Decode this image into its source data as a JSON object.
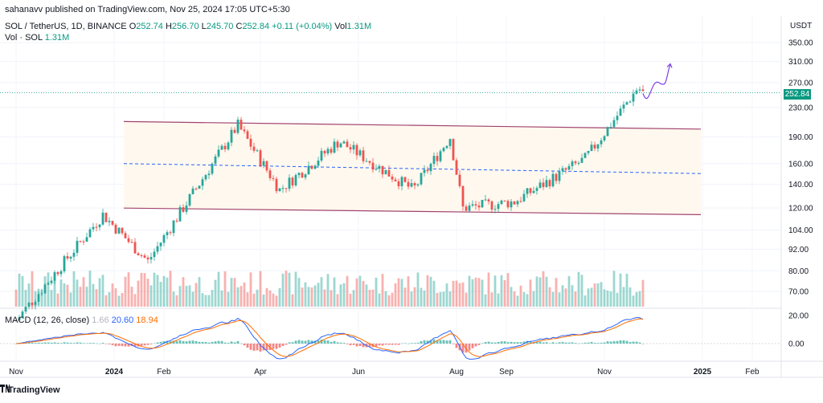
{
  "header": {
    "publisher": "sahanavv published on TradingView.com, Nov 25, 2024 17:05 UTC+5:30",
    "symbol": "SOL / TetherUS, 1D, BINANCE",
    "o_label": "O",
    "o_value": "252.74",
    "h_label": "H",
    "h_value": "256.70",
    "l_label": "L",
    "l_value": "245.70",
    "c_label": "C",
    "c_value": "252.84",
    "change": "+0.11 (+0.04%)",
    "vol_label": "Vol",
    "vol_value": "1.31M",
    "vol_series_label": "Vol · SOL",
    "vol_series_value": "1.31M"
  },
  "macd": {
    "label": "MACD (12, 26, close)",
    "hist": "1.66",
    "macd": "20.60",
    "signal": "18.94"
  },
  "footer": {
    "brand": "TradingView",
    "logo_icon": "tradingview-logo-icon"
  },
  "colors": {
    "up": "#26a69a",
    "down": "#ef5350",
    "channel": "#a2436e",
    "mid": "#2962ff",
    "macd": "#2962ff",
    "signal": "#ff6d00",
    "projection": "#7b3fe4",
    "channel_fill": "#fff8ee"
  },
  "chart_data": {
    "type": "candlestick",
    "currency": "USDT",
    "last_price": "252.84",
    "y_axis_ticks": [
      "350.00",
      "310.00",
      "270.00",
      "230.00",
      "190.00",
      "160.00",
      "140.00",
      "120.00",
      "104.00",
      "92.00",
      "80.00",
      "70.00"
    ],
    "y_axis_scale": "log",
    "macd_axis_ticks": [
      "20.00",
      "0.00"
    ],
    "x_axis_ticks": [
      "Nov",
      "2024",
      "Feb",
      "Apr",
      "Jun",
      "Aug",
      "Sep",
      "Nov",
      "2025",
      "Feb"
    ],
    "approx_closes": [
      {
        "date": "2023-11",
        "close": 58
      },
      {
        "date": "2023-12-25",
        "close": 115
      },
      {
        "date": "2024-01-22",
        "close": 85
      },
      {
        "date": "2024-03-18",
        "close": 205
      },
      {
        "date": "2024-04-13",
        "close": 135
      },
      {
        "date": "2024-05-20",
        "close": 185
      },
      {
        "date": "2024-07-05",
        "close": 135
      },
      {
        "date": "2024-07-28",
        "close": 190
      },
      {
        "date": "2024-08-05",
        "close": 120
      },
      {
        "date": "2024-09-06",
        "close": 125
      },
      {
        "date": "2024-10-20",
        "close": 165
      },
      {
        "date": "2024-11-22",
        "close": 262
      },
      {
        "date": "2024-11-25",
        "close": 252.84
      }
    ],
    "annotations": [
      {
        "type": "parallel_channel",
        "upper": [
          210,
          200
        ],
        "middle": [
          160,
          150
        ],
        "lower": [
          120,
          115
        ],
        "span": [
          "2024-01",
          "2024-12"
        ]
      },
      {
        "type": "projection_path",
        "target": 305
      }
    ]
  }
}
